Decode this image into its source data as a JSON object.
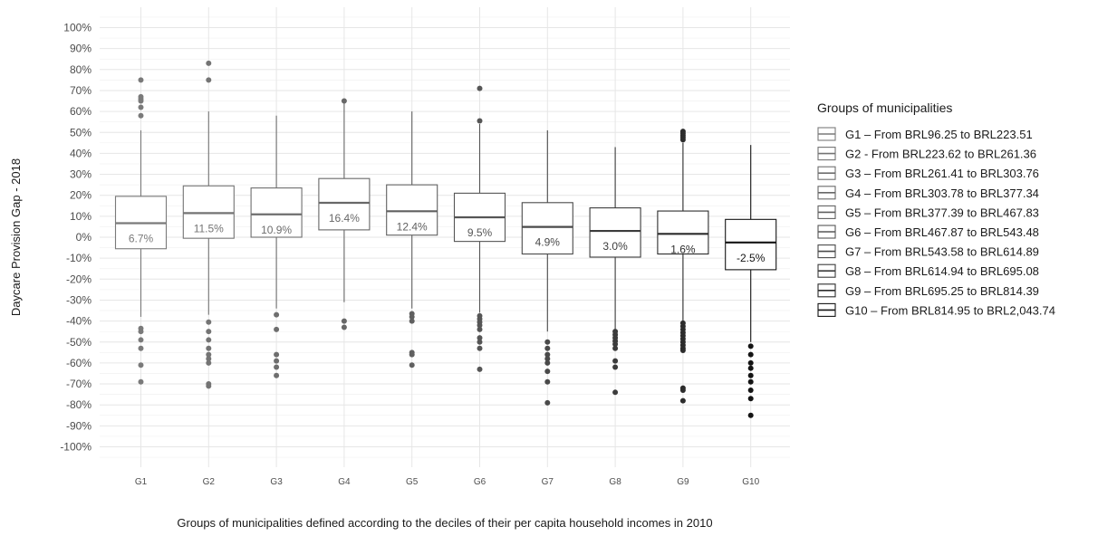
{
  "chart_data": {
    "type": "box",
    "xlabel": "Groups of municipalities defined according to the deciles of their per capita household incomes in 2010",
    "ylabel": "Daycare Provision Gap - 2018",
    "ylim": [
      -100,
      100
    ],
    "y_ticks": [
      100,
      90,
      80,
      70,
      60,
      50,
      40,
      30,
      20,
      10,
      0,
      -10,
      -20,
      -30,
      -40,
      -50,
      -60,
      -70,
      -80,
      -90,
      -100
    ],
    "y_tick_labels": [
      "100%",
      "90%",
      "80%",
      "70%",
      "60%",
      "50%",
      "40%",
      "30%",
      "20%",
      "10%",
      "0%",
      "-10%",
      "-20%",
      "-30%",
      "-40%",
      "-50%",
      "-60%",
      "-70%",
      "-80%",
      "-90%",
      "-100%"
    ],
    "grid": true,
    "legend_position": "right",
    "legend_title": "Groups of municipalities",
    "groups": [
      {
        "name": "G1",
        "legend": "G1 – From BRL96.25 to BRL223.51",
        "color": "#7a7a7a",
        "whisker_low": -38,
        "q1": -5.5,
        "median": 6.7,
        "q3": 19.5,
        "whisker_high": 51,
        "median_label": "6.7%",
        "outliers": [
          75,
          67,
          66,
          65,
          62,
          58,
          -43.5,
          -45,
          -49,
          -53,
          -61,
          -69
        ]
      },
      {
        "name": "G2",
        "legend": "G2 - From BRL223.62 to BRL261.36",
        "color": "#747474",
        "whisker_low": -37,
        "q1": -0.5,
        "median": 11.5,
        "q3": 24.5,
        "whisker_high": 60,
        "median_label": "11.5%",
        "outliers": [
          83,
          75,
          -40.5,
          -45,
          -49,
          -53,
          -56,
          -58,
          -60,
          -70,
          -71
        ]
      },
      {
        "name": "G3",
        "legend": "G3 – From BRL261.41 to BRL303.76",
        "color": "#6e6e6e",
        "whisker_low": -34,
        "q1": 0,
        "median": 10.9,
        "q3": 23.5,
        "whisker_high": 58,
        "median_label": "10.9%",
        "outliers": [
          -37,
          -44,
          -56,
          -59,
          -62,
          -66
        ]
      },
      {
        "name": "G4",
        "legend": "G4 – From BRL303.78 to BRL377.34",
        "color": "#686868",
        "whisker_low": -31,
        "q1": 3.5,
        "median": 16.4,
        "q3": 28,
        "whisker_high": 64,
        "median_label": "16.4%",
        "outliers": [
          65,
          -40,
          -43
        ]
      },
      {
        "name": "G5",
        "legend": "G5 – From BRL377.39 to BRL467.83",
        "color": "#606060",
        "whisker_low": -34,
        "q1": 1,
        "median": 12.4,
        "q3": 25,
        "whisker_high": 60,
        "median_label": "12.4%",
        "outliers": [
          -36.5,
          -38,
          -40,
          -55,
          -56,
          -61
        ]
      },
      {
        "name": "G6",
        "legend": "G6 – From BRL467.87 to BRL543.48",
        "color": "#565656",
        "whisker_low": -36,
        "q1": -2,
        "median": 9.5,
        "q3": 21,
        "whisker_high": 54,
        "median_label": "9.5%",
        "outliers": [
          71,
          55.5,
          -37.5,
          -39,
          -40.5,
          -42,
          -44,
          -48,
          -50,
          -53,
          -63
        ]
      },
      {
        "name": "G7",
        "legend": "G7 – From BRL543.58 to BRL614.89",
        "color": "#4a4a4a",
        "whisker_low": -45,
        "q1": -8,
        "median": 4.9,
        "q3": 16.5,
        "whisker_high": 51,
        "median_label": "4.9%",
        "outliers": [
          -50,
          -53,
          -56,
          -58,
          -60,
          -64,
          -69,
          -79
        ]
      },
      {
        "name": "G8",
        "legend": "G8 – From BRL614.94 to BRL695.08",
        "color": "#3c3c3c",
        "whisker_low": -44,
        "q1": -9.5,
        "median": 3.0,
        "q3": 14,
        "whisker_high": 43,
        "median_label": "3.0%",
        "outliers": [
          -45,
          -46.5,
          -48,
          -49.5,
          -51,
          -53,
          -59,
          -62,
          -74
        ]
      },
      {
        "name": "G9",
        "legend": "G9 – From BRL695.25 to BRL814.39",
        "color": "#2c2c2c",
        "whisker_low": -40,
        "q1": -8,
        "median": 1.6,
        "q3": 12.5,
        "whisker_high": 45,
        "median_label": "1.6%",
        "outliers": [
          50.5,
          49.5,
          48.5,
          47.5,
          46.5,
          -41,
          -42.5,
          -44,
          -45.5,
          -47,
          -48.5,
          -50,
          -51.5,
          -53,
          -54,
          -72,
          -73,
          -78
        ]
      },
      {
        "name": "G10",
        "legend": "G10 – From BRL814.95 to BRL2,043.74",
        "color": "#141414",
        "whisker_low": -50,
        "q1": -15.5,
        "median": -2.5,
        "q3": 8.5,
        "whisker_high": 44,
        "median_label": "-2.5%",
        "outliers": [
          -52,
          -56,
          -60,
          -62.5,
          -66,
          -69,
          -73,
          -77,
          -85
        ]
      }
    ]
  }
}
